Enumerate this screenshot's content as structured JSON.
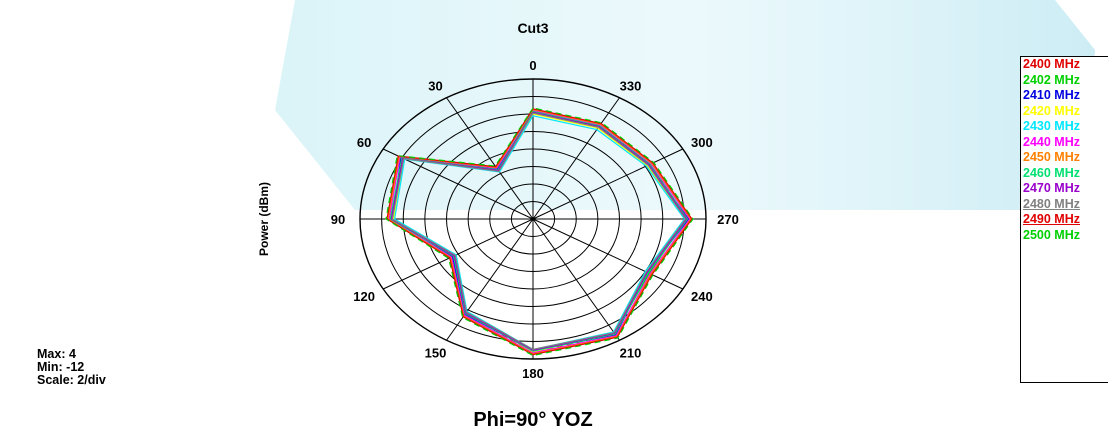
{
  "chart_data": {
    "type": "polar",
    "title": "Cut3",
    "xlabel": "Phi=90°   YOZ",
    "ylabel": "Power  (dBm)",
    "angle_ticks": [
      "0",
      "30",
      "60",
      "90",
      "120",
      "150",
      "180",
      "210",
      "240",
      "270",
      "300",
      "330"
    ],
    "rlim": [
      -12,
      4
    ],
    "radial_step": 2,
    "grid": true,
    "legend_position": "right",
    "stats": {
      "max": "Max: 4",
      "min": "Min: -12",
      "scale": "Scale: 2/div"
    },
    "series": [
      {
        "name": "2400 MHz",
        "color": "#e00000",
        "dash": true,
        "values": [
          0.3,
          -5.5,
          2.0,
          1.1,
          -3.5,
          0.5,
          3.2,
          3.2,
          0.3,
          2.3,
          0.5,
          0.3
        ]
      },
      {
        "name": "2402 MHz",
        "color": "#00d000",
        "dash": false,
        "values": [
          0.2,
          -5.6,
          1.9,
          1.2,
          -3.6,
          0.4,
          3.1,
          3.1,
          0.4,
          2.2,
          0.4,
          0.2
        ]
      },
      {
        "name": "2410 MHz",
        "color": "#0000e0",
        "dash": false,
        "values": [
          0.1,
          -5.4,
          2.1,
          1.0,
          -3.4,
          0.6,
          3.0,
          3.3,
          0.2,
          2.4,
          0.3,
          0.1
        ]
      },
      {
        "name": "2420 MHz",
        "color": "#ffff00",
        "dash": false,
        "values": [
          0.0,
          -5.7,
          1.8,
          0.9,
          -3.7,
          0.3,
          3.2,
          3.0,
          0.1,
          2.1,
          0.2,
          0.0
        ]
      },
      {
        "name": "2430 MHz",
        "color": "#00e8ff",
        "dash": false,
        "values": [
          -0.2,
          -5.8,
          1.7,
          0.8,
          -3.8,
          0.2,
          2.9,
          2.9,
          0.0,
          2.0,
          0.1,
          -0.2
        ]
      },
      {
        "name": "2440 MHz",
        "color": "#ff00ff",
        "dash": false,
        "values": [
          0.4,
          -5.3,
          2.2,
          1.3,
          -3.3,
          0.7,
          3.3,
          3.4,
          0.5,
          2.5,
          0.6,
          0.4
        ]
      },
      {
        "name": "2450 MHz",
        "color": "#ff8000",
        "dash": false,
        "values": [
          0.5,
          -5.2,
          2.3,
          1.4,
          -3.2,
          0.8,
          3.4,
          3.5,
          0.6,
          2.6,
          0.7,
          0.5
        ]
      },
      {
        "name": "2460 MHz",
        "color": "#00e070",
        "dash": false,
        "values": [
          0.3,
          -5.5,
          2.0,
          1.2,
          -3.5,
          0.5,
          3.1,
          3.2,
          0.3,
          2.3,
          0.5,
          0.3
        ]
      },
      {
        "name": "2470 MHz",
        "color": "#9900cc",
        "dash": false,
        "values": [
          0.2,
          -5.6,
          1.9,
          1.1,
          -3.6,
          0.4,
          3.0,
          3.1,
          0.2,
          2.2,
          0.4,
          0.2
        ]
      },
      {
        "name": "2480 MHz",
        "color": "#808080",
        "dash": false,
        "values": [
          0.1,
          -5.7,
          1.8,
          1.0,
          -3.7,
          0.3,
          2.9,
          3.0,
          0.1,
          2.1,
          0.3,
          0.1
        ]
      },
      {
        "name": "2490 MHz",
        "color": "#e00000",
        "dash": false,
        "values": [
          0.6,
          -5.1,
          2.4,
          1.5,
          -3.1,
          0.9,
          3.5,
          3.6,
          0.7,
          2.7,
          0.8,
          0.6
        ]
      },
      {
        "name": "2500 MHz",
        "color": "#00d000",
        "dash": true,
        "values": [
          0.7,
          -5.0,
          2.5,
          1.6,
          -3.0,
          1.0,
          3.6,
          3.7,
          0.8,
          2.8,
          0.9,
          0.7
        ]
      }
    ],
    "legend_underline": [
      "2480 MHz",
      "2490 MHz"
    ]
  }
}
